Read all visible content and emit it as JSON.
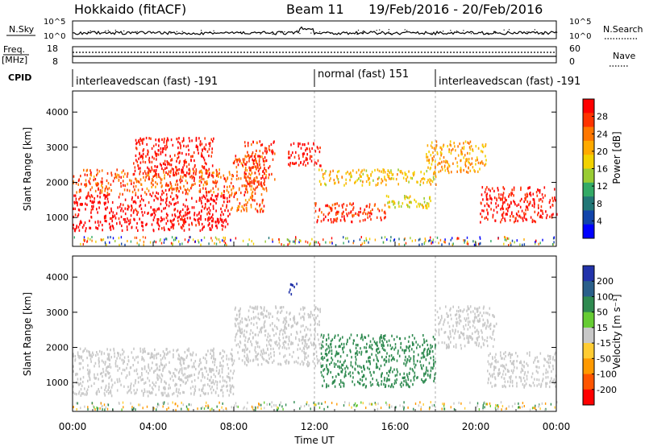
{
  "header": {
    "station": "Hokkaido (fitACF)",
    "beam": "Beam 11",
    "date_range": "19/Feb/2016 - 20/Feb/2016"
  },
  "left_labels": {
    "nsky": "N.Sky",
    "freq": "Freq.",
    "mhz": "[MHz]",
    "cpid": "CPID"
  },
  "right_labels": {
    "nsearch": "N.Search",
    "nave": "Nave"
  },
  "strip_axes": {
    "noise_left_ticks": [
      "10^5",
      "10^0"
    ],
    "noise_right_ticks": [
      "10^5",
      "10^0"
    ],
    "freq_left_ticks": [
      "18",
      "8"
    ],
    "nave_right_ticks": [
      "60",
      "0"
    ]
  },
  "cpid_segments": [
    {
      "label": "interleavedscan (fast) -191",
      "start_hour": 0.0
    },
    {
      "label": "normal (fast) 151",
      "start_hour": 12.0
    },
    {
      "label": "interleavedscan (fast) -191",
      "start_hour": 18.0
    }
  ],
  "panels": {
    "power": {
      "ylabel": "Slant Range [km]",
      "yticks": [
        1000,
        2000,
        3000,
        4000
      ],
      "colorbar_label": "Power [dB]",
      "colorbar_ticks": [
        "28",
        "24",
        "20",
        "16",
        "12",
        "8",
        "4"
      ],
      "colorbar_colors": [
        "#ff0000",
        "#ff3300",
        "#ff7700",
        "#ffaa00",
        "#f2d200",
        "#99cc33",
        "#33aa66",
        "#227777",
        "#1144aa",
        "#0000ff"
      ]
    },
    "velocity": {
      "ylabel": "Slant Range [km]",
      "yticks": [
        1000,
        2000,
        3000,
        4000
      ],
      "colorbar_label": "Velocity [m s⁻¹]",
      "colorbar_ticks": [
        "200",
        "100",
        "50",
        "15",
        "-15",
        "-50",
        "-100",
        "-200"
      ],
      "colorbar_colors": [
        "#2233aa",
        "#2a5f8a",
        "#2f8a50",
        "#66cc33",
        "#c8c8c8",
        "#ffcc33",
        "#ff9900",
        "#ff5500",
        "#ff0000"
      ]
    }
  },
  "time_axis": {
    "xlabel": "Time UT",
    "ticks": [
      "00:00",
      "04:00",
      "08:00",
      "12:00",
      "16:00",
      "20:00",
      "00:00"
    ]
  },
  "chart_data": {
    "type": "heatmap",
    "title": "Hokkaido (fitACF) Beam 11 19/Feb/2016 - 20/Feb/2016",
    "xlabel": "Time UT",
    "ylabel": "Slant Range [km]",
    "xlim_hours": [
      0,
      24
    ],
    "ylim_km": [
      180,
      4600
    ],
    "grid": false,
    "series": [
      {
        "name": "Power [dB]",
        "clim": [
          0,
          30
        ],
        "regions": [
          {
            "t0": 0.0,
            "t1": 7.8,
            "r0": 650,
            "r1": 1700,
            "value": 30
          },
          {
            "t0": 0.0,
            "t1": 7.8,
            "r0": 1700,
            "r1": 2400,
            "value": 24
          },
          {
            "t0": 3.0,
            "t1": 7.0,
            "r0": 2200,
            "r1": 3300,
            "value": 28
          },
          {
            "t0": 7.8,
            "t1": 9.6,
            "r0": 1200,
            "r1": 2800,
            "value": 24
          },
          {
            "t0": 8.5,
            "t1": 10.0,
            "r0": 2000,
            "r1": 3200,
            "value": 26
          },
          {
            "t0": 10.6,
            "t1": 12.3,
            "r0": 2500,
            "r1": 3150,
            "value": 28
          },
          {
            "t0": 12.2,
            "t1": 18.0,
            "r0": 1950,
            "r1": 2400,
            "value": 18
          },
          {
            "t0": 12.0,
            "t1": 15.5,
            "r0": 900,
            "r1": 1450,
            "value": 26
          },
          {
            "t0": 15.5,
            "t1": 17.8,
            "r0": 1300,
            "r1": 1700,
            "value": 16
          },
          {
            "t0": 17.5,
            "t1": 20.5,
            "r0": 2300,
            "r1": 3200,
            "value": 20
          },
          {
            "t0": 20.2,
            "t1": 24.0,
            "r0": 900,
            "r1": 1900,
            "value": 28
          }
        ]
      },
      {
        "name": "Velocity [m s⁻¹]",
        "clim": [
          -200,
          200
        ],
        "regions": [
          {
            "t0": 0.0,
            "t1": 8.0,
            "r0": 650,
            "r1": 2000,
            "value": 0
          },
          {
            "t0": 8.0,
            "t1": 12.3,
            "r0": 1500,
            "r1": 3200,
            "value": 0
          },
          {
            "t0": 12.3,
            "t1": 18.0,
            "r0": 900,
            "r1": 2400,
            "value": 60
          },
          {
            "t0": 10.7,
            "t1": 11.1,
            "r0": 3500,
            "r1": 3850,
            "value": 250
          },
          {
            "t0": 18.0,
            "t1": 21.0,
            "r0": 2000,
            "r1": 3200,
            "value": 0
          },
          {
            "t0": 20.5,
            "t1": 24.0,
            "r0": 900,
            "r1": 1900,
            "value": 0
          }
        ]
      }
    ]
  }
}
